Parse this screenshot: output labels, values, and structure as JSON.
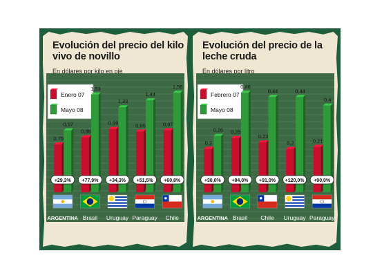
{
  "chart_data": [
    {
      "type": "bar",
      "title": "Evolución del precio del kilo vivo de novillo",
      "subtitle": "En dólares por kilo en pie",
      "categories": [
        "ARGENTINA",
        "Brasil",
        "Uruguay",
        "Paraguay",
        "Chile"
      ],
      "series": [
        {
          "name": "Enero 07",
          "values": [
            0.75,
            0.86,
            0.99,
            0.95,
            0.97
          ],
          "color": "#c8102e"
        },
        {
          "name": "Mayo 08",
          "values": [
            0.97,
            1.53,
            1.33,
            1.44,
            1.56
          ],
          "color": "#2e9a3a"
        }
      ],
      "value_labels": [
        [
          "0,75",
          "0,86",
          "0,99",
          "0,95",
          "0,97"
        ],
        [
          "0,97",
          "1,53",
          "1,33",
          "1,44",
          "1,56"
        ]
      ],
      "changes": [
        "+29,3%",
        "+77,9%",
        "+34,3%",
        "+51,5%",
        "+60,8%"
      ],
      "flags": [
        "argentina",
        "brasil",
        "uruguay",
        "paraguay",
        "chile"
      ],
      "ylim": [
        0,
        1.56
      ],
      "legend": "top-left"
    },
    {
      "type": "bar",
      "title": "Evolución del precio de la leche cruda",
      "subtitle": "En dólares por litro",
      "categories": [
        "ARGENTINA",
        "Brasil",
        "Chile",
        "Uruguay",
        "Paraguay"
      ],
      "series": [
        {
          "name": "Febrero 07",
          "values": [
            0.2,
            0.25,
            0.23,
            0.2,
            0.21
          ],
          "color": "#c8102e"
        },
        {
          "name": "Mayo 08",
          "values": [
            0.26,
            0.46,
            0.44,
            0.44,
            0.4
          ],
          "color": "#2e9a3a"
        }
      ],
      "value_labels": [
        [
          "0,2",
          "0,25",
          "0,23",
          "0,2",
          "0,21"
        ],
        [
          "0,26",
          "0,46",
          "0,44",
          "0,44",
          "0,4"
        ]
      ],
      "changes": [
        "+30,0%",
        "+84,0%",
        "+91,0%",
        "+120,0%",
        "+90,0%"
      ],
      "flags": [
        "argentina",
        "brasil",
        "chile",
        "uruguay",
        "paraguay"
      ],
      "ylim": [
        0,
        0.46
      ],
      "legend": "top-left"
    }
  ]
}
